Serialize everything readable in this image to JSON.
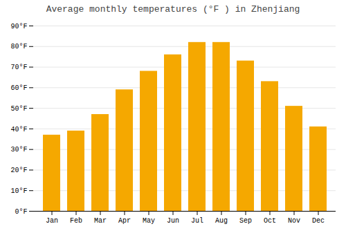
{
  "chart_data": {
    "type": "bar",
    "title": "Average monthly temperatures (°F ) in Zhenjiang",
    "categories": [
      "Jan",
      "Feb",
      "Mar",
      "Apr",
      "May",
      "Jun",
      "Jul",
      "Aug",
      "Sep",
      "Oct",
      "Nov",
      "Dec"
    ],
    "values": [
      37,
      39,
      47,
      59,
      68,
      76,
      82,
      82,
      73,
      63,
      51,
      41
    ],
    "color": "#F5A800",
    "ylim": [
      0,
      90
    ],
    "yticks": [
      {
        "value": 0,
        "label": "0°F"
      },
      {
        "value": 10,
        "label": "10°F"
      },
      {
        "value": 20,
        "label": "20°F"
      },
      {
        "value": 30,
        "label": "30°F"
      },
      {
        "value": 40,
        "label": "40°F"
      },
      {
        "value": 50,
        "label": "50°F"
      },
      {
        "value": 60,
        "label": "60°F"
      },
      {
        "value": 70,
        "label": "70°F"
      },
      {
        "value": 80,
        "label": "80°F"
      },
      {
        "value": 90,
        "label": "90°F"
      }
    ],
    "grid": true
  }
}
